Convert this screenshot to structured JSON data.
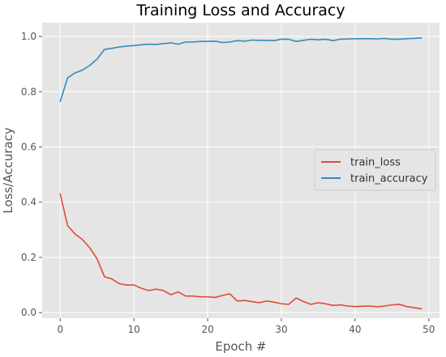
{
  "chart_data": {
    "type": "line",
    "title": "Training Loss and Accuracy",
    "xlabel": "Epoch #",
    "ylabel": "Loss/Accuracy",
    "xlim": [
      -2.45,
      51.45
    ],
    "ylim": [
      -0.02,
      1.05
    ],
    "xticks": [
      0,
      10,
      20,
      30,
      40,
      50
    ],
    "yticks": [
      0.0,
      0.2,
      0.4,
      0.6,
      0.8,
      1.0
    ],
    "grid": true,
    "legend_position": "center-right",
    "colors": {
      "background": "#e5e5e5",
      "grid": "#ffffff"
    },
    "x": [
      0,
      1,
      2,
      3,
      4,
      5,
      6,
      7,
      8,
      9,
      10,
      11,
      12,
      13,
      14,
      15,
      16,
      17,
      18,
      19,
      20,
      21,
      22,
      23,
      24,
      25,
      26,
      27,
      28,
      29,
      30,
      31,
      32,
      33,
      34,
      35,
      36,
      37,
      38,
      39,
      40,
      41,
      42,
      43,
      44,
      45,
      46,
      47,
      48,
      49
    ],
    "series": [
      {
        "name": "train_loss",
        "color": "#e24a33",
        "values": [
          0.43,
          0.315,
          0.285,
          0.265,
          0.235,
          0.195,
          0.13,
          0.122,
          0.105,
          0.1,
          0.1,
          0.088,
          0.08,
          0.085,
          0.08,
          0.065,
          0.075,
          0.06,
          0.06,
          0.057,
          0.057,
          0.055,
          0.062,
          0.068,
          0.042,
          0.044,
          0.04,
          0.036,
          0.042,
          0.038,
          0.032,
          0.03,
          0.053,
          0.04,
          0.03,
          0.036,
          0.032,
          0.026,
          0.028,
          0.024,
          0.022,
          0.023,
          0.024,
          0.021,
          0.024,
          0.028,
          0.03,
          0.022,
          0.018,
          0.014
        ]
      },
      {
        "name": "train_accuracy",
        "color": "#348abd",
        "values": [
          0.765,
          0.85,
          0.868,
          0.878,
          0.895,
          0.918,
          0.953,
          0.957,
          0.962,
          0.965,
          0.967,
          0.97,
          0.972,
          0.971,
          0.974,
          0.977,
          0.972,
          0.98,
          0.98,
          0.982,
          0.982,
          0.983,
          0.978,
          0.98,
          0.985,
          0.983,
          0.987,
          0.986,
          0.986,
          0.985,
          0.99,
          0.99,
          0.982,
          0.986,
          0.99,
          0.988,
          0.99,
          0.985,
          0.99,
          0.991,
          0.992,
          0.992,
          0.992,
          0.991,
          0.993,
          0.99,
          0.99,
          0.992,
          0.993,
          0.995
        ]
      }
    ]
  }
}
